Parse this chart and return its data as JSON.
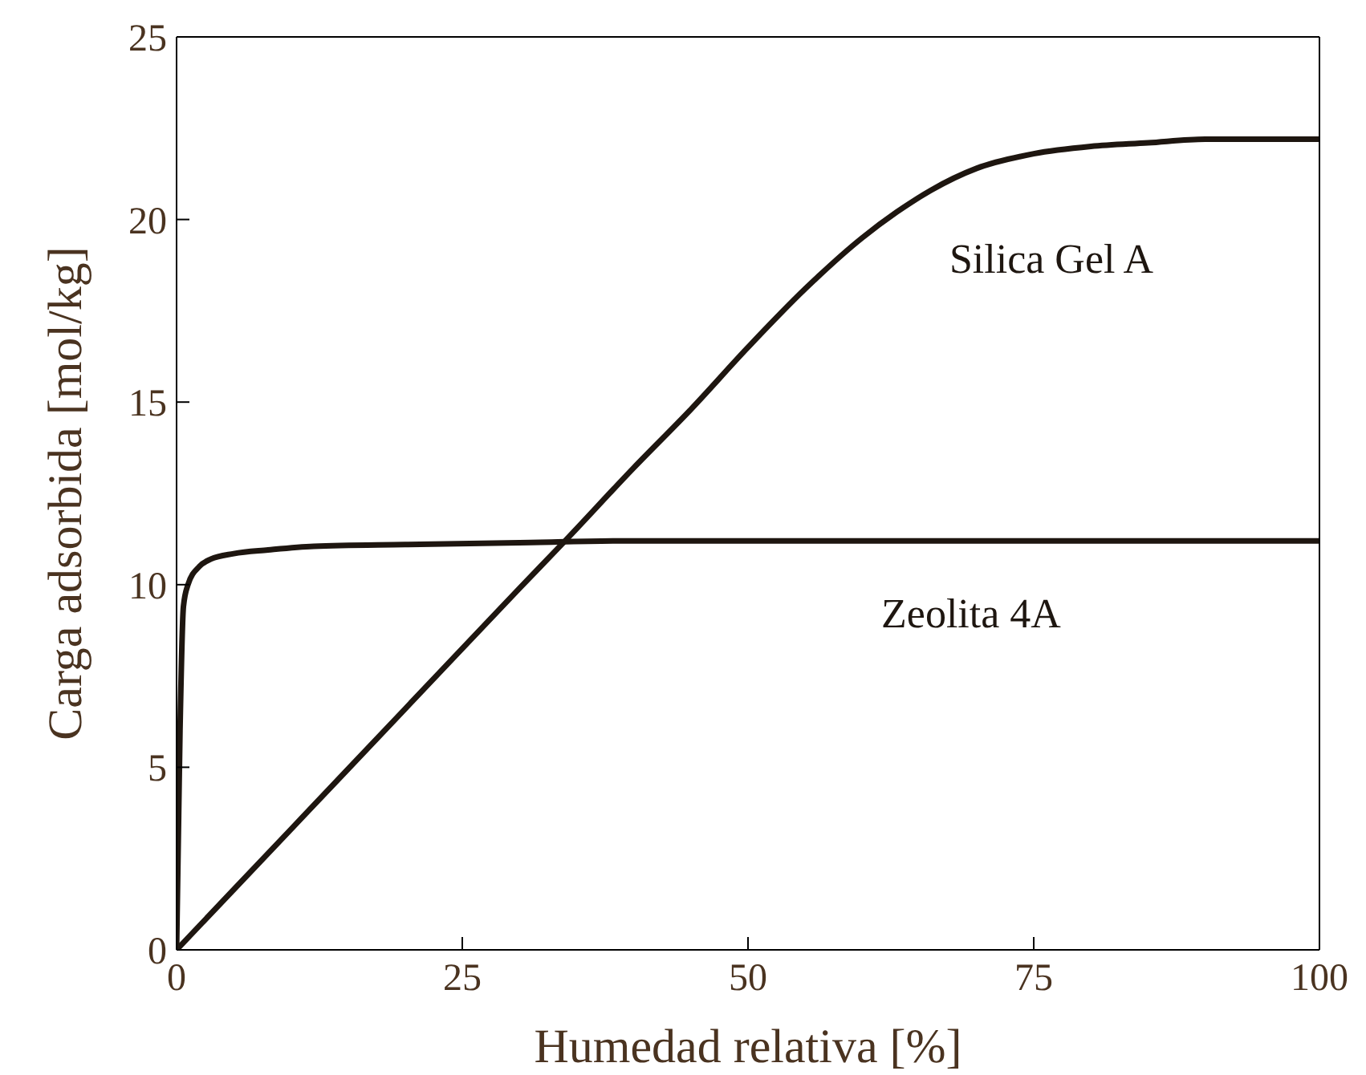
{
  "chart_data": {
    "type": "line",
    "xlabel": "Humedad relativa [%]",
    "ylabel": "Carga adsorbida [mol/kg]",
    "xlim": [
      0,
      100
    ],
    "xticks": [
      0,
      25,
      50,
      75,
      100
    ],
    "ylim": [
      0,
      25
    ],
    "yticks": [
      0,
      5,
      10,
      15,
      20,
      25
    ],
    "grid": false,
    "legend": false,
    "marker": "none",
    "line_style": "solid",
    "series": [
      {
        "name": "Silica Gel A",
        "color": "#1e1610",
        "x": [
          0,
          10,
          20,
          30,
          34,
          40,
          45,
          50,
          55,
          60,
          63,
          66,
          70,
          75,
          80,
          85,
          90,
          95,
          100
        ],
        "values": [
          0,
          3.3,
          6.6,
          9.9,
          11.2,
          13.2,
          14.8,
          16.5,
          18.1,
          19.5,
          20.2,
          20.8,
          21.4,
          21.8,
          22.0,
          22.1,
          22.2,
          22.2,
          22.2
        ]
      },
      {
        "name": "Zeolita 4A",
        "color": "#1e1610",
        "x": [
          0,
          0.3,
          0.6,
          1,
          2,
          3,
          5,
          8,
          12,
          20,
          30,
          40,
          60,
          80,
          100
        ],
        "values": [
          0,
          6,
          9.4,
          10,
          10.5,
          10.7,
          10.85,
          10.95,
          11.05,
          11.1,
          11.15,
          11.2,
          11.2,
          11.2,
          11.2
        ]
      }
    ]
  }
}
